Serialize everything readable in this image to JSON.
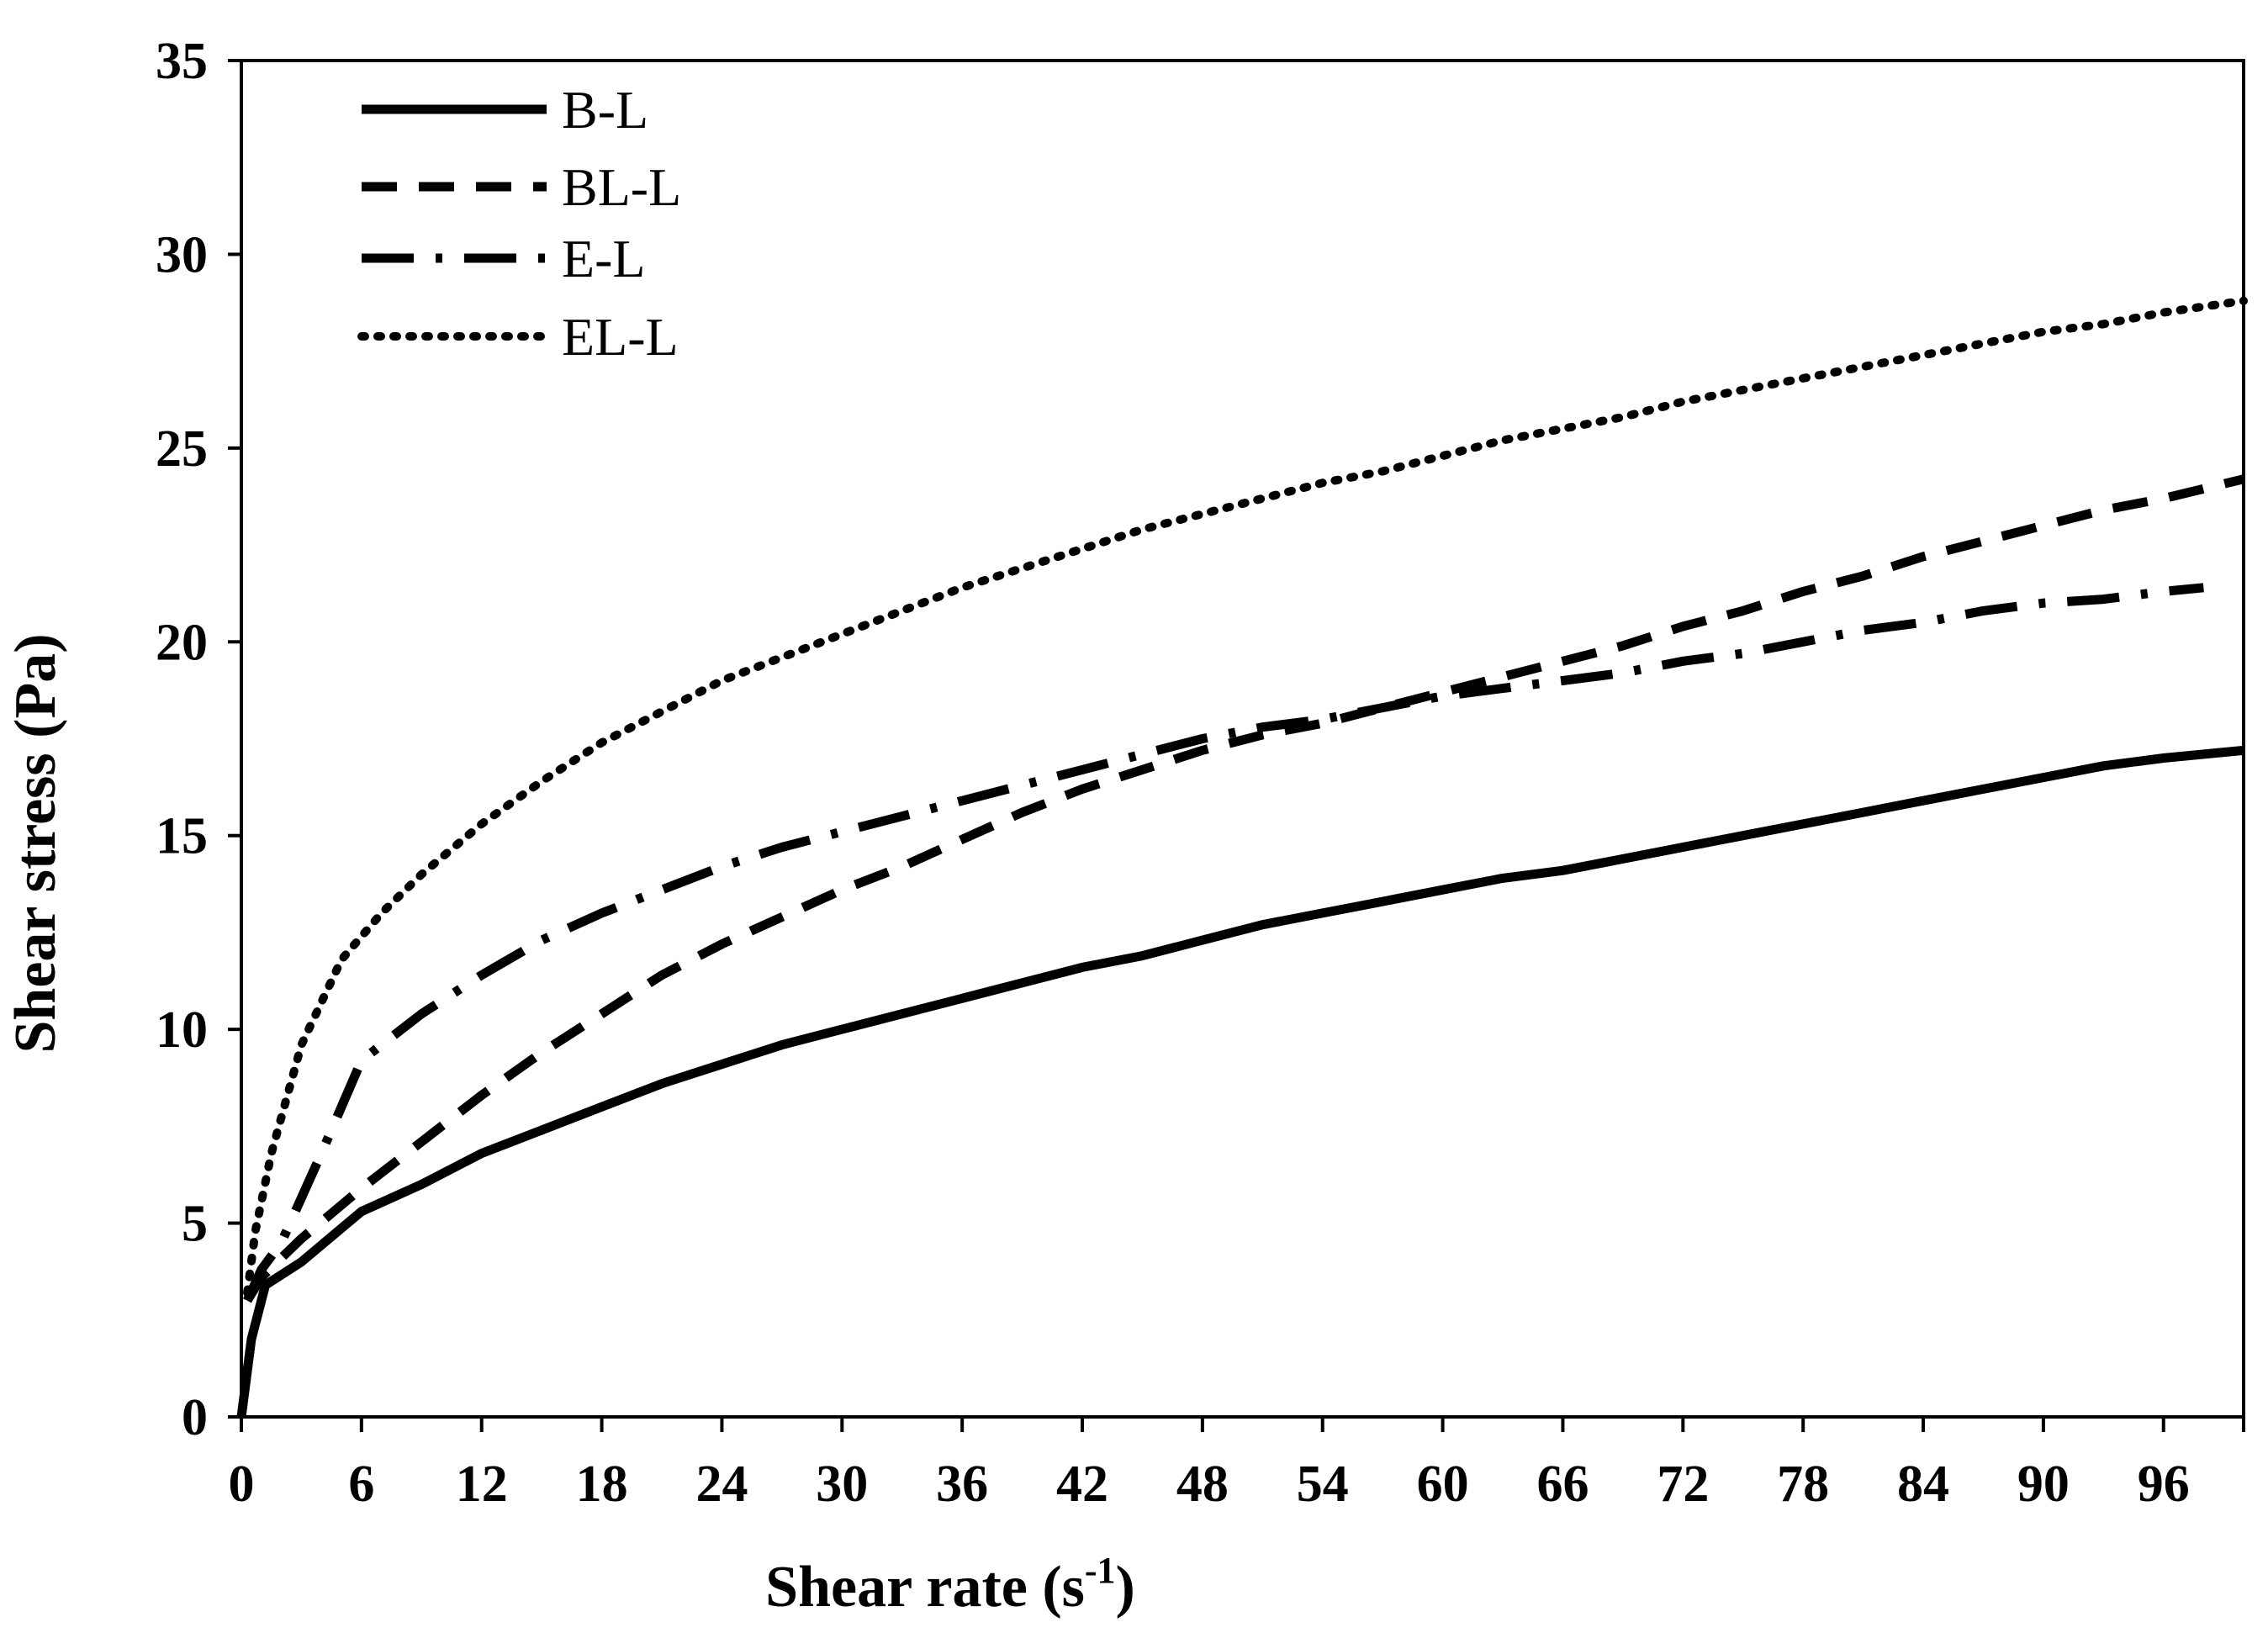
{
  "chart_data": {
    "type": "line",
    "xlabel": "Shear rate (s",
    "xlabel_sup": "-1",
    "xlabel_close": ")",
    "ylabel": "Shear stress (Pa)",
    "xlim": [
      0,
      100
    ],
    "ylim": [
      0,
      35
    ],
    "x_ticks": [
      0,
      6,
      12,
      18,
      24,
      30,
      36,
      42,
      48,
      54,
      60,
      66,
      72,
      78,
      84,
      90,
      96
    ],
    "x_tick_labels": [
      "0",
      "6",
      "12",
      "18",
      "24",
      "30",
      "36",
      "42",
      "48",
      "54",
      "60",
      "66",
      "72",
      "78",
      "84",
      "90",
      "96"
    ],
    "y_ticks": [
      0,
      5,
      10,
      15,
      20,
      25,
      30,
      35
    ],
    "y_tick_labels": [
      "0",
      "5",
      "10",
      "15",
      "20",
      "25",
      "30",
      "35"
    ],
    "grid": false,
    "legend_position": "top-left",
    "series": [
      {
        "name": "B-L",
        "style": "solid",
        "color": "#000000",
        "points": [
          [
            0,
            0
          ],
          [
            0.5,
            2.0
          ],
          [
            1.2,
            3.4
          ],
          [
            3,
            4.0
          ],
          [
            6,
            5.3
          ],
          [
            9,
            6.0
          ],
          [
            12,
            6.8
          ],
          [
            15,
            7.4
          ],
          [
            18,
            8.0
          ],
          [
            21,
            8.6
          ],
          [
            24,
            9.1
          ],
          [
            27,
            9.6
          ],
          [
            30,
            10.0
          ],
          [
            33,
            10.4
          ],
          [
            36,
            10.8
          ],
          [
            39,
            11.2
          ],
          [
            42,
            11.6
          ],
          [
            45,
            11.9
          ],
          [
            48,
            12.3
          ],
          [
            51,
            12.7
          ],
          [
            54,
            13.0
          ],
          [
            57,
            13.3
          ],
          [
            60,
            13.6
          ],
          [
            63,
            13.9
          ],
          [
            66,
            14.1
          ],
          [
            69,
            14.4
          ],
          [
            72,
            14.7
          ],
          [
            75,
            15.0
          ],
          [
            78,
            15.3
          ],
          [
            81,
            15.6
          ],
          [
            84,
            15.9
          ],
          [
            87,
            16.2
          ],
          [
            90,
            16.5
          ],
          [
            93,
            16.8
          ],
          [
            96,
            17.0
          ],
          [
            100,
            17.2
          ]
        ]
      },
      {
        "name": "BL-L",
        "style": "dashed",
        "color": "#000000",
        "points": [
          [
            0.3,
            3.0
          ],
          [
            1,
            3.6
          ],
          [
            3,
            4.6
          ],
          [
            6,
            5.9
          ],
          [
            9,
            7.1
          ],
          [
            12,
            8.3
          ],
          [
            15,
            9.4
          ],
          [
            18,
            10.4
          ],
          [
            21,
            11.4
          ],
          [
            24,
            12.2
          ],
          [
            27,
            12.9
          ],
          [
            30,
            13.6
          ],
          [
            33,
            14.2
          ],
          [
            36,
            14.9
          ],
          [
            39,
            15.6
          ],
          [
            42,
            16.2
          ],
          [
            45,
            16.7
          ],
          [
            48,
            17.2
          ],
          [
            51,
            17.6
          ],
          [
            54,
            17.9
          ],
          [
            57,
            18.3
          ],
          [
            60,
            18.7
          ],
          [
            63,
            19.1
          ],
          [
            66,
            19.5
          ],
          [
            69,
            19.9
          ],
          [
            72,
            20.4
          ],
          [
            75,
            20.8
          ],
          [
            78,
            21.3
          ],
          [
            81,
            21.7
          ],
          [
            84,
            22.2
          ],
          [
            87,
            22.6
          ],
          [
            90,
            23.0
          ],
          [
            93,
            23.4
          ],
          [
            96,
            23.7
          ],
          [
            100,
            24.2
          ]
        ]
      },
      {
        "name": "E-L",
        "style": "dashdot",
        "color": "#000000",
        "points": [
          [
            0.3,
            3.0
          ],
          [
            1,
            3.8
          ],
          [
            2,
            4.5
          ],
          [
            4,
            6.8
          ],
          [
            6,
            9.2
          ],
          [
            9,
            10.4
          ],
          [
            12,
            11.4
          ],
          [
            15,
            12.3
          ],
          [
            18,
            13.0
          ],
          [
            21,
            13.6
          ],
          [
            24,
            14.2
          ],
          [
            27,
            14.7
          ],
          [
            30,
            15.1
          ],
          [
            33,
            15.5
          ],
          [
            36,
            15.9
          ],
          [
            39,
            16.3
          ],
          [
            42,
            16.7
          ],
          [
            45,
            17.1
          ],
          [
            48,
            17.5
          ],
          [
            51,
            17.8
          ],
          [
            54,
            18.0
          ],
          [
            57,
            18.3
          ],
          [
            60,
            18.6
          ],
          [
            63,
            18.8
          ],
          [
            66,
            19.0
          ],
          [
            69,
            19.2
          ],
          [
            72,
            19.5
          ],
          [
            75,
            19.7
          ],
          [
            78,
            20.0
          ],
          [
            81,
            20.3
          ],
          [
            84,
            20.5
          ],
          [
            87,
            20.8
          ],
          [
            90,
            21.0
          ],
          [
            93,
            21.1
          ],
          [
            96,
            21.3
          ],
          [
            98,
            21.4
          ]
        ]
      },
      {
        "name": "EL-L",
        "style": "dotted",
        "color": "#000000",
        "points": [
          [
            0.3,
            3.2
          ],
          [
            0.7,
            4.8
          ],
          [
            1.5,
            6.8
          ],
          [
            3,
            9.6
          ],
          [
            5,
            11.8
          ],
          [
            7,
            13.0
          ],
          [
            9,
            14.0
          ],
          [
            12,
            15.3
          ],
          [
            15,
            16.4
          ],
          [
            18,
            17.4
          ],
          [
            21,
            18.2
          ],
          [
            24,
            19.0
          ],
          [
            27,
            19.6
          ],
          [
            30,
            20.2
          ],
          [
            33,
            20.8
          ],
          [
            36,
            21.4
          ],
          [
            39,
            21.9
          ],
          [
            42,
            22.4
          ],
          [
            45,
            22.9
          ],
          [
            48,
            23.3
          ],
          [
            51,
            23.7
          ],
          [
            54,
            24.1
          ],
          [
            57,
            24.4
          ],
          [
            60,
            24.8
          ],
          [
            63,
            25.2
          ],
          [
            66,
            25.5
          ],
          [
            69,
            25.8
          ],
          [
            72,
            26.2
          ],
          [
            75,
            26.5
          ],
          [
            78,
            26.8
          ],
          [
            81,
            27.1
          ],
          [
            84,
            27.4
          ],
          [
            87,
            27.7
          ],
          [
            90,
            28.0
          ],
          [
            93,
            28.2
          ],
          [
            96,
            28.5
          ],
          [
            100,
            28.8
          ]
        ]
      }
    ]
  }
}
